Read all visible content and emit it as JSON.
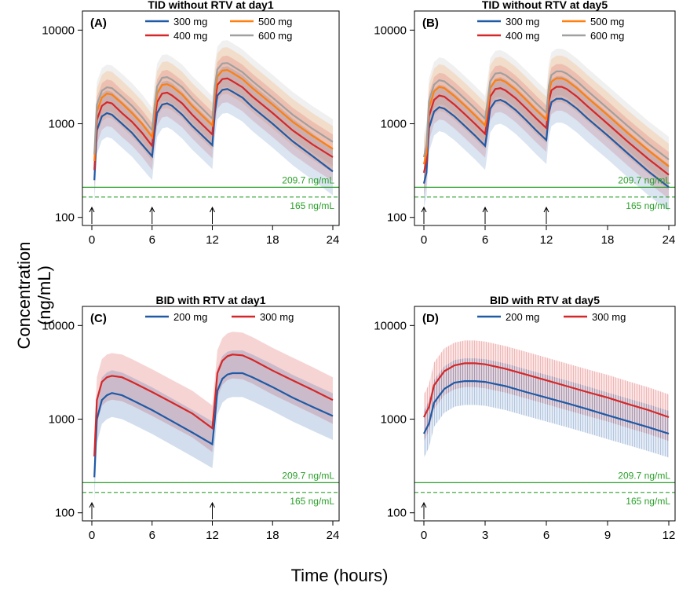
{
  "figure": {
    "ylabel": "Concentration (ng/mL)",
    "xlabel": "Time (hours)",
    "threshold_labels": [
      "209.7 ng/mL",
      "165 ng/mL"
    ]
  },
  "colors": {
    "300mg_tid": "#1f5aa6",
    "400mg_tid": "#d62728",
    "500mg_tid": "#ff7f0e",
    "600mg_tid": "#a0a0a0",
    "200mg_bid": "#1f5aa6",
    "300mg_bid": "#d62728",
    "threshold": "#2ca02c"
  },
  "chart_data": [
    {
      "id": "A",
      "type": "line",
      "panel_label": "(A)",
      "title": "TID without RTV at day1",
      "xlabel": "Time (hours)",
      "ylabel": "Concentration (ng/mL)",
      "yscale": "log",
      "xlim": [
        0,
        24
      ],
      "ylim": [
        100,
        10000
      ],
      "xticks": [
        0,
        6,
        12,
        18,
        24
      ],
      "yticks": [
        100,
        1000,
        10000
      ],
      "dose_times": [
        0,
        6,
        12
      ],
      "hlines": [
        {
          "value": 209.7,
          "label": "209.7 ng/mL",
          "style": "solid"
        },
        {
          "value": 165,
          "label": "165 ng/mL",
          "style": "dashed"
        }
      ],
      "legend": [
        "300 mg",
        "500 mg",
        "400 mg",
        "600 mg"
      ],
      "series": [
        {
          "name": "300 mg",
          "color": "#1f5aa6",
          "x": [
            0,
            0.25,
            0.5,
            1,
            1.5,
            2,
            3,
            4,
            5,
            6,
            6.25,
            6.5,
            7,
            7.5,
            8,
            9,
            10,
            11,
            12,
            12.25,
            12.5,
            13,
            13.5,
            14,
            15,
            16,
            18,
            20,
            22,
            24
          ],
          "y": [
            0,
            250,
            850,
            1200,
            1300,
            1250,
            1000,
            800,
            600,
            450,
            800,
            1300,
            1600,
            1650,
            1550,
            1250,
            950,
            750,
            590,
            1300,
            2000,
            2300,
            2350,
            2200,
            1900,
            1500,
            1000,
            650,
            450,
            310
          ]
        },
        {
          "name": "400 mg",
          "color": "#d62728",
          "x": [
            0,
            0.25,
            0.5,
            1,
            1.5,
            2,
            3,
            4,
            5,
            6,
            6.25,
            6.5,
            7,
            7.5,
            8,
            9,
            10,
            11,
            12,
            12.25,
            12.5,
            13,
            13.5,
            14,
            15,
            16,
            18,
            20,
            22,
            24
          ],
          "y": [
            0,
            320,
            1100,
            1550,
            1700,
            1650,
            1300,
            1050,
            800,
            580,
            1050,
            1700,
            2100,
            2150,
            2000,
            1650,
            1250,
            980,
            770,
            1700,
            2600,
            3000,
            3050,
            2850,
            2450,
            1950,
            1300,
            850,
            600,
            440
          ]
        },
        {
          "name": "500 mg",
          "color": "#ff7f0e",
          "x": [
            0,
            0.25,
            0.5,
            1,
            1.5,
            2,
            3,
            4,
            5,
            6,
            6.25,
            6.5,
            7,
            7.5,
            8,
            9,
            10,
            11,
            12,
            12.25,
            12.5,
            13,
            13.5,
            14,
            15,
            16,
            18,
            20,
            22,
            24
          ],
          "y": [
            0,
            400,
            1350,
            1900,
            2100,
            2050,
            1650,
            1300,
            1000,
            720,
            1300,
            2100,
            2600,
            2650,
            2500,
            2050,
            1550,
            1220,
            960,
            2100,
            3200,
            3700,
            3750,
            3500,
            3000,
            2400,
            1600,
            1050,
            740,
            540
          ]
        },
        {
          "name": "600 mg",
          "color": "#a0a0a0",
          "x": [
            0,
            0.25,
            0.5,
            1,
            1.5,
            2,
            3,
            4,
            5,
            6,
            6.25,
            6.5,
            7,
            7.5,
            8,
            9,
            10,
            11,
            12,
            12.25,
            12.5,
            13,
            13.5,
            14,
            15,
            16,
            18,
            20,
            22,
            24
          ],
          "y": [
            0,
            470,
            1600,
            2250,
            2450,
            2400,
            1950,
            1550,
            1180,
            850,
            1550,
            2500,
            3100,
            3150,
            2950,
            2450,
            1850,
            1450,
            1130,
            2500,
            3800,
            4400,
            4450,
            4150,
            3550,
            2850,
            1900,
            1250,
            880,
            640
          ]
        }
      ]
    },
    {
      "id": "B",
      "type": "line",
      "panel_label": "(B)",
      "title": "TID without RTV at day5",
      "xlabel": "Time (hours)",
      "ylabel": "Concentration (ng/mL)",
      "yscale": "log",
      "xlim": [
        0,
        24
      ],
      "ylim": [
        100,
        10000
      ],
      "xticks": [
        0,
        6,
        12,
        18,
        24
      ],
      "yticks": [
        100,
        1000,
        10000
      ],
      "dose_times": [
        0,
        6,
        12
      ],
      "hlines": [
        {
          "value": 209.7,
          "label": "209.7 ng/mL",
          "style": "solid"
        },
        {
          "value": 165,
          "label": "165 ng/mL",
          "style": "dashed"
        }
      ],
      "legend": [
        "300 mg",
        "500 mg",
        "400 mg",
        "600 mg"
      ],
      "series": [
        {
          "name": "300 mg",
          "color": "#1f5aa6",
          "x": [
            0,
            0.25,
            0.5,
            1,
            1.5,
            2,
            3,
            4,
            5,
            6,
            6.25,
            6.5,
            7,
            7.5,
            8,
            9,
            10,
            11,
            12,
            12.25,
            12.5,
            13,
            13.5,
            14,
            15,
            16,
            18,
            20,
            22,
            24
          ],
          "y": [
            230,
            300,
            900,
            1350,
            1500,
            1450,
            1200,
            950,
            750,
            580,
            900,
            1450,
            1750,
            1800,
            1700,
            1400,
            1100,
            850,
            670,
            1300,
            1700,
            1850,
            1850,
            1750,
            1450,
            1150,
            750,
            480,
            310,
            210
          ]
        },
        {
          "name": "400 mg",
          "color": "#d62728",
          "x": [
            0,
            0.25,
            0.5,
            1,
            1.5,
            2,
            3,
            4,
            5,
            6,
            6.25,
            6.5,
            7,
            7.5,
            8,
            9,
            10,
            11,
            12,
            12.25,
            12.5,
            13,
            13.5,
            14,
            15,
            16,
            18,
            20,
            22,
            24
          ],
          "y": [
            300,
            400,
            1200,
            1800,
            2000,
            1950,
            1600,
            1270,
            1000,
            780,
            1200,
            1950,
            2350,
            2400,
            2270,
            1870,
            1470,
            1140,
            900,
            1750,
            2280,
            2480,
            2480,
            2350,
            1950,
            1550,
            1000,
            640,
            420,
            285
          ]
        },
        {
          "name": "500 mg",
          "color": "#ff7f0e",
          "x": [
            0,
            0.25,
            0.5,
            1,
            1.5,
            2,
            3,
            4,
            5,
            6,
            6.25,
            6.5,
            7,
            7.5,
            8,
            9,
            10,
            11,
            12,
            12.25,
            12.5,
            13,
            13.5,
            14,
            15,
            16,
            18,
            20,
            22,
            24
          ],
          "y": [
            370,
            490,
            1480,
            2220,
            2470,
            2400,
            1970,
            1570,
            1230,
            960,
            1480,
            2400,
            2900,
            2960,
            2800,
            2310,
            1810,
            1400,
            1110,
            2160,
            2810,
            3060,
            3060,
            2900,
            2400,
            1910,
            1240,
            790,
            520,
            350
          ]
        },
        {
          "name": "600 mg",
          "color": "#a0a0a0",
          "x": [
            0,
            0.25,
            0.5,
            1,
            1.5,
            2,
            3,
            4,
            5,
            6,
            6.25,
            6.5,
            7,
            7.5,
            8,
            9,
            10,
            11,
            12,
            12.25,
            12.5,
            13,
            13.5,
            14,
            15,
            16,
            18,
            20,
            22,
            24
          ],
          "y": [
            440,
            580,
            1750,
            2620,
            2920,
            2840,
            2330,
            1850,
            1460,
            1130,
            1750,
            2840,
            3430,
            3500,
            3310,
            2730,
            2140,
            1660,
            1310,
            2550,
            3320,
            3620,
            3620,
            3430,
            2840,
            2260,
            1460,
            940,
            610,
            415
          ]
        }
      ]
    },
    {
      "id": "C",
      "type": "line",
      "panel_label": "(C)",
      "title": "BID with RTV at day1",
      "xlabel": "Time (hours)",
      "ylabel": "Concentration (ng/mL)",
      "yscale": "log",
      "xlim": [
        0,
        24
      ],
      "ylim": [
        100,
        10000
      ],
      "xticks": [
        0,
        6,
        12,
        18,
        24
      ],
      "yticks": [
        100,
        1000,
        10000
      ],
      "dose_times": [
        0,
        12
      ],
      "hlines": [
        {
          "value": 209.7,
          "label": "209.7 ng/mL",
          "style": "solid"
        },
        {
          "value": 165,
          "label": "165 ng/mL",
          "style": "dashed"
        }
      ],
      "legend": [
        "200 mg",
        "300 mg"
      ],
      "series": [
        {
          "name": "200 mg",
          "color": "#1f5aa6",
          "x": [
            0,
            0.25,
            0.5,
            1,
            1.5,
            2,
            3,
            4,
            6,
            8,
            10,
            12,
            12.25,
            12.5,
            13,
            13.5,
            14,
            15,
            16,
            18,
            20,
            22,
            24
          ],
          "y": [
            0,
            240,
            1000,
            1600,
            1800,
            1900,
            1800,
            1600,
            1250,
            950,
            720,
            540,
            1000,
            2000,
            2700,
            3000,
            3100,
            3100,
            2800,
            2200,
            1700,
            1350,
            1080
          ]
        },
        {
          "name": "300 mg",
          "color": "#d62728",
          "x": [
            0,
            0.25,
            0.5,
            1,
            1.5,
            2,
            3,
            4,
            6,
            8,
            10,
            12,
            12.25,
            12.5,
            13,
            13.5,
            14,
            15,
            16,
            18,
            20,
            22,
            24
          ],
          "y": [
            0,
            400,
            1600,
            2500,
            2800,
            2900,
            2800,
            2500,
            1950,
            1500,
            1150,
            800,
            1550,
            3100,
            4200,
            4700,
            4900,
            4800,
            4300,
            3300,
            2600,
            2050,
            1600
          ]
        }
      ]
    },
    {
      "id": "D",
      "type": "line",
      "panel_label": "(D)",
      "title": "BID with RTV at day5",
      "xlabel": "Time (hours)",
      "ylabel": "Concentration (ng/mL)",
      "yscale": "log",
      "xlim": [
        0,
        12
      ],
      "ylim": [
        100,
        10000
      ],
      "xticks": [
        0,
        3,
        6,
        9,
        12
      ],
      "yticks": [
        100,
        1000,
        10000
      ],
      "dose_times": [
        0
      ],
      "hlines": [
        {
          "value": 209.7,
          "label": "209.7 ng/mL",
          "style": "solid"
        },
        {
          "value": 165,
          "label": "165 ng/mL",
          "style": "dashed"
        }
      ],
      "legend": [
        "200 mg",
        "300 mg"
      ],
      "series": [
        {
          "name": "200 mg",
          "color": "#1f5aa6",
          "x": [
            0,
            0.25,
            0.5,
            1,
            1.5,
            2,
            2.5,
            3,
            4,
            5,
            6,
            7,
            8,
            9,
            10,
            11,
            12
          ],
          "y": [
            700,
            900,
            1500,
            2100,
            2450,
            2550,
            2550,
            2500,
            2250,
            1950,
            1700,
            1480,
            1280,
            1100,
            950,
            820,
            700
          ]
        },
        {
          "name": "300 mg",
          "color": "#d62728",
          "x": [
            0,
            0.25,
            0.5,
            1,
            1.5,
            2,
            2.5,
            3,
            4,
            5,
            6,
            7,
            8,
            9,
            10,
            11,
            12
          ],
          "y": [
            1050,
            1350,
            2300,
            3250,
            3750,
            3950,
            3950,
            3850,
            3450,
            3000,
            2600,
            2250,
            1950,
            1700,
            1450,
            1250,
            1050
          ]
        }
      ]
    }
  ]
}
